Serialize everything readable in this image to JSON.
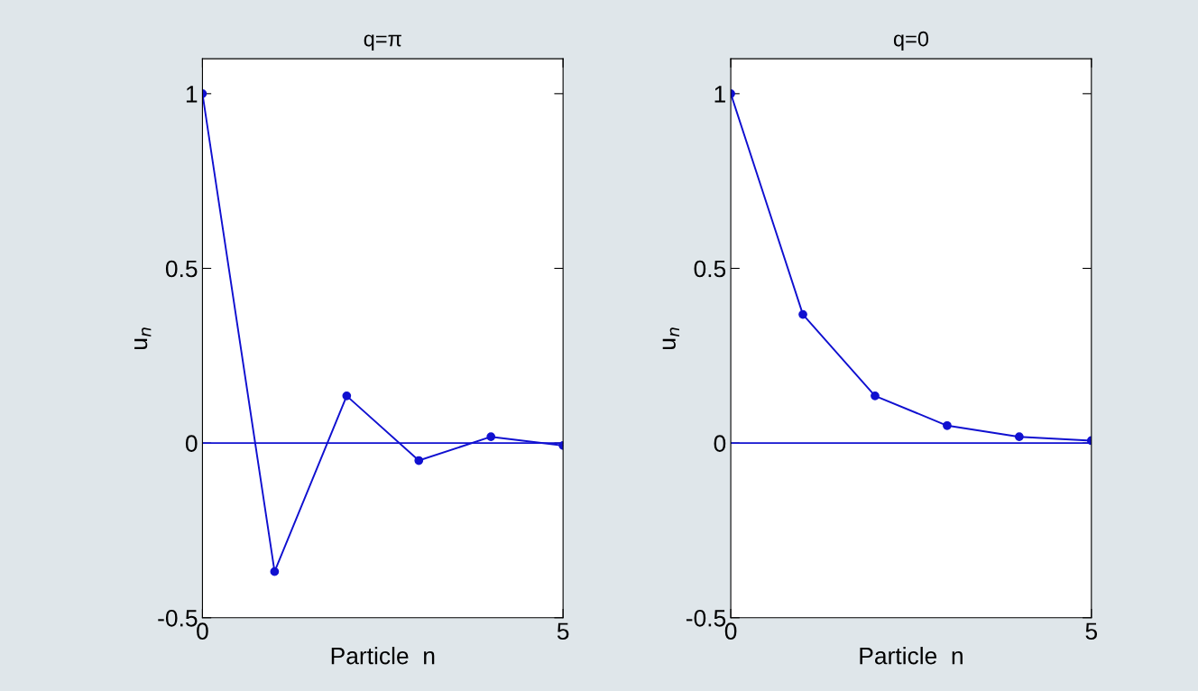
{
  "chart_data": [
    {
      "type": "line",
      "title": "q=π",
      "xlabel": "Particle  n",
      "ylabel": "u$_{n}$",
      "x": [
        0,
        1,
        2,
        3,
        4,
        5
      ],
      "series": [
        {
          "color": "#1010d0",
          "values": [
            1,
            -0.368,
            0.135,
            -0.05,
            0.018,
            -0.007
          ]
        }
      ],
      "xlim": [
        0,
        5
      ],
      "ylim": [
        -0.5,
        1.1
      ],
      "xticks": [
        0,
        5
      ],
      "yticks": [
        -0.5,
        0,
        0.5,
        1
      ],
      "ref_lines": [
        {
          "axis": "y",
          "value": 0,
          "color": "#1010d0"
        }
      ],
      "marker": "circle",
      "grid": false
    },
    {
      "type": "line",
      "title": "q=0",
      "xlabel": "Particle  n",
      "ylabel": "u$_{n}$",
      "x": [
        0,
        1,
        2,
        3,
        4,
        5
      ],
      "series": [
        {
          "color": "#1010d0",
          "values": [
            1,
            0.368,
            0.135,
            0.05,
            0.018,
            0.007
          ]
        }
      ],
      "xlim": [
        0,
        5
      ],
      "ylim": [
        -0.5,
        1.1
      ],
      "xticks": [
        0,
        5
      ],
      "yticks": [
        -0.5,
        0,
        0.5,
        1
      ],
      "ref_lines": [
        {
          "axis": "y",
          "value": 0,
          "color": "#1010d0"
        }
      ],
      "marker": "circle",
      "grid": false
    }
  ]
}
